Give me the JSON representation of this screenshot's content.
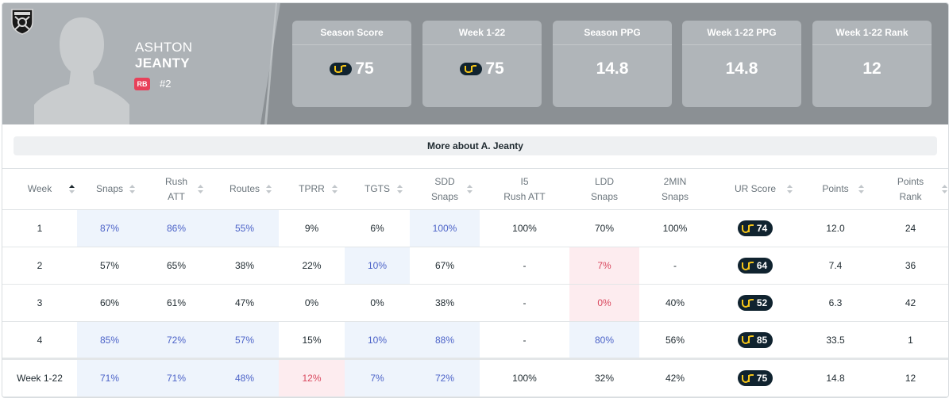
{
  "player": {
    "first_name": "ASHTON",
    "last_name": "JEANTY",
    "position": "RB",
    "jersey": "#2",
    "team_logo": "raiders-shield-icon"
  },
  "stat_cards": [
    {
      "label": "Season Score",
      "value": "75",
      "ur_logo": true
    },
    {
      "label": "Week 1-22",
      "value": "75",
      "ur_logo": true
    },
    {
      "label": "Season PPG",
      "value": "14.8",
      "ur_logo": false
    },
    {
      "label": "Week 1-22 PPG",
      "value": "14.8",
      "ur_logo": false
    },
    {
      "label": "Week 1-22 Rank",
      "value": "12",
      "ur_logo": false
    }
  ],
  "more_button": "More about A. Jeanty",
  "table": {
    "headers": [
      {
        "line1": "Week",
        "line2": ""
      },
      {
        "line1": "Snaps",
        "line2": ""
      },
      {
        "line1": "Rush",
        "line2": "ATT"
      },
      {
        "line1": "Routes",
        "line2": ""
      },
      {
        "line1": "TPRR",
        "line2": ""
      },
      {
        "line1": "TGTS",
        "line2": ""
      },
      {
        "line1": "SDD",
        "line2": "Snaps"
      },
      {
        "line1": "I5",
        "line2": "Rush ATT"
      },
      {
        "line1": "LDD",
        "line2": "Snaps"
      },
      {
        "line1": "2MIN",
        "line2": "Snaps"
      },
      {
        "line1": "UR Score",
        "line2": ""
      },
      {
        "line1": "Points",
        "line2": ""
      },
      {
        "line1": "Points",
        "line2": "Rank"
      }
    ],
    "rows": [
      {
        "week": "1",
        "snaps": "87%",
        "rush_att": "86%",
        "routes": "55%",
        "tprr": "9%",
        "tgts": "6%",
        "sdd": "100%",
        "i5": "100%",
        "ldd": "70%",
        "two_min": "100%",
        "ur": "74",
        "points": "12.0",
        "rank": "24"
      },
      {
        "week": "2",
        "snaps": "57%",
        "rush_att": "65%",
        "routes": "38%",
        "tprr": "22%",
        "tgts": "10%",
        "sdd": "67%",
        "i5": "-",
        "ldd": "7%",
        "two_min": "-",
        "ur": "64",
        "points": "7.4",
        "rank": "36"
      },
      {
        "week": "3",
        "snaps": "60%",
        "rush_att": "61%",
        "routes": "47%",
        "tprr": "0%",
        "tgts": "0%",
        "sdd": "38%",
        "i5": "-",
        "ldd": "0%",
        "two_min": "40%",
        "ur": "52",
        "points": "6.3",
        "rank": "42"
      },
      {
        "week": "4",
        "snaps": "85%",
        "rush_att": "72%",
        "routes": "57%",
        "tprr": "15%",
        "tgts": "10%",
        "sdd": "88%",
        "i5": "-",
        "ldd": "80%",
        "two_min": "56%",
        "ur": "85",
        "points": "33.5",
        "rank": "1"
      }
    ],
    "total": {
      "week": "Week 1-22",
      "snaps": "71%",
      "rush_att": "71%",
      "routes": "48%",
      "tprr": "12%",
      "tgts": "7%",
      "sdd": "72%",
      "i5": "100%",
      "ldd": "32%",
      "two_min": "42%",
      "ur": "75",
      "points": "14.8",
      "rank": "12"
    }
  },
  "colors": {
    "header_bg": "#8b9094",
    "card_bg": "#b0b5b9",
    "ur_pill": "#10232f",
    "ur_yellow": "#f5c518",
    "highlight_blue": "#eef4fc",
    "highlight_red": "#fdecef",
    "position_badge": "#e8415a"
  }
}
